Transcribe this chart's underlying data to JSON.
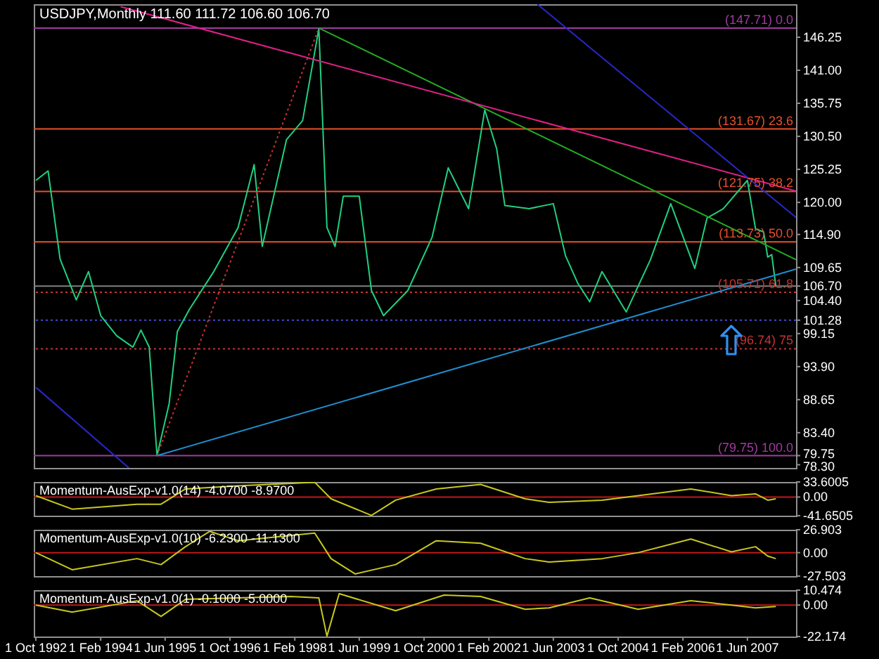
{
  "chart_data": [
    {
      "type": "line",
      "title": "USDJPY,Monthly 111.60 111.72 106.60 106.70",
      "xlim": [
        "1992-09-15",
        "2008-06-01"
      ],
      "ylim": [
        77.8,
        151.5
      ],
      "tick_labels": "y",
      "yticks": [
        {
          "value": 78.3,
          "label": "78.30"
        },
        {
          "value": 83.4,
          "label": "83.40"
        },
        88.65,
        {
          "value": 93.9,
          "label": "93.90"
        },
        99.15,
        {
          "value": 104.4,
          "label": "104.40"
        },
        109.65,
        {
          "value": 114.9,
          "label": "114.90"
        },
        {
          "value": 120,
          "label": "120.00"
        },
        125.25,
        {
          "value": 130.5,
          "label": "130.50"
        },
        135.75,
        {
          "value": 141,
          "label": "141.00"
        },
        146.25,
        {
          "value": 106.7,
          "label": "106.70"
        },
        {
          "value": 101.28,
          "label": "101.28"
        },
        {
          "value": 79.75,
          "label": "79.75"
        }
      ],
      "ref_lines": [
        {
          "axis": "y",
          "value": 147.71,
          "label": "(147.71) 0.0",
          "color": "#a03ca0"
        },
        {
          "axis": "y",
          "value": 131.67,
          "label": "(131.67) 23.6",
          "color": "#e8502a"
        },
        {
          "axis": "y",
          "value": 121.75,
          "label": "(121.75) 38.2",
          "color": "#e8502a"
        },
        {
          "axis": "y",
          "value": 113.73,
          "label": "(113.73) 50.0",
          "color": "#e8502a"
        },
        {
          "axis": "y",
          "value": 105.71,
          "label": "(105.71) 61.8",
          "color": "#c83232",
          "line_style": "dotted"
        },
        {
          "axis": "y",
          "value": 96.74,
          "label": "(96.74) 75",
          "color": "#c83232",
          "line_style": "dotted"
        },
        {
          "axis": "y",
          "value": 79.75,
          "label": "(79.75) 100.0",
          "color": "#a03ca0"
        },
        {
          "axis": "y",
          "value": 106.7,
          "color": "#808080"
        },
        {
          "axis": "y",
          "value": 101.28,
          "color": "#4848d0",
          "line_style": "dotted"
        }
      ],
      "series": [
        {
          "color": "#20d080",
          "x": [
            "1992-10",
            "1993-01",
            "1993-04",
            "1993-08",
            "1993-11",
            "1994-02",
            "1994-06",
            "1994-10",
            "1994-12",
            "1995-02",
            "1995-04",
            "1995-07",
            "1995-09",
            "1995-12",
            "1996-06",
            "1996-12",
            "1997-04",
            "1997-06",
            "1997-12",
            "1998-04",
            "1998-08",
            "1998-10",
            "1998-12",
            "1999-02",
            "1999-06",
            "1999-09",
            "1999-12",
            "2000-06",
            "2000-12",
            "2001-04",
            "2001-09",
            "2002-01",
            "2002-04",
            "2002-06",
            "2002-12",
            "2003-06",
            "2003-09",
            "2003-12",
            "2004-03",
            "2004-06",
            "2004-12",
            "2005-06",
            "2005-11",
            "2006-05",
            "2006-08",
            "2006-12",
            "2007-06",
            "2007-08",
            "2007-10",
            "2007-11",
            "2007-12",
            "2008-01"
          ],
          "values": [
            123.5,
            125,
            111,
            104.5,
            109,
            102,
            98.8,
            97,
            99.7,
            97,
            79.75,
            88,
            99.5,
            103,
            109,
            116,
            126,
            113,
            130,
            133,
            147.6,
            116,
            113,
            121,
            121,
            106,
            102,
            106,
            114.5,
            125.5,
            119,
            134.7,
            128.5,
            119.5,
            119,
            119.8,
            111.5,
            107.2,
            104.2,
            109,
            102.6,
            110.9,
            119.8,
            109.5,
            117.5,
            119,
            123.5,
            115.8,
            115.3,
            111.3,
            111.7,
            106.7
          ]
        },
        {
          "type": "line",
          "color": "#22aa22",
          "x": [
            "1998-08",
            "2008-06"
          ],
          "values": [
            147.71,
            110.9
          ]
        },
        {
          "type": "line",
          "color": "#e0208a",
          "x": [
            "1994-07",
            "2008-06"
          ],
          "values": [
            151.1,
            121.8
          ]
        },
        {
          "type": "line",
          "color": "#1e90d0",
          "x": [
            "1995-04",
            "2008-06"
          ],
          "values": [
            79.75,
            109.4
          ]
        },
        {
          "type": "line",
          "color": "#d03030",
          "line_style": "dotted",
          "x": [
            "1995-04",
            "1998-08"
          ],
          "values": [
            79.75,
            147.71
          ]
        },
        {
          "type": "line",
          "color": "#2828c8",
          "x": [
            "1992-10",
            "1994-09"
          ],
          "values": [
            90.6,
            77.8
          ]
        },
        {
          "type": "line",
          "color": "#2828c8",
          "x": [
            "2003-02",
            "2008-06"
          ],
          "values": [
            151.5,
            117.6
          ]
        }
      ]
    },
    {
      "type": "line",
      "title": "Momentum-AusExp-v1.0(14) -4.0700 -8.9700",
      "xlim": [
        "1992-09-15",
        "2008-06-01"
      ],
      "ylim": [
        -41.6505,
        33.6005
      ],
      "tick_labels": "y",
      "yticks": [
        33.6005,
        {
          "value": 0,
          "label": "0.00"
        },
        -41.6505
      ],
      "ref_lines": [
        {
          "axis": "y",
          "value": 0,
          "color": "#c01818"
        }
      ],
      "series": [
        {
          "color": "#c8c820",
          "x": [
            "1992-10",
            "1993-07",
            "1994-11",
            "1995-05",
            "1995-11",
            "1996-12",
            "1998-07",
            "1998-11",
            "1999-09",
            "2000-03",
            "2001-01",
            "2001-12",
            "2002-11",
            "2003-05",
            "2004-06",
            "2005-03",
            "2006-04",
            "2007-02",
            "2007-08",
            "2007-11",
            "2008-01"
          ],
          "values": [
            3,
            -27,
            -16,
            -16,
            18,
            25,
            33,
            -4,
            -41,
            -7,
            18,
            28,
            -4,
            -12,
            -7,
            3,
            18,
            3,
            7,
            -7,
            -4
          ]
        }
      ]
    },
    {
      "type": "line",
      "title": "Momentum-AusExp-v1.0(10) -6.2300 -11.1300",
      "xlim": [
        "1992-09-15",
        "2008-06-01"
      ],
      "ylim": [
        -27.503,
        26.903
      ],
      "tick_labels": "y",
      "yticks": [
        26.903,
        {
          "value": 0,
          "label": "0.00"
        },
        -27.503
      ],
      "ref_lines": [
        {
          "axis": "y",
          "value": 0,
          "color": "#c01818"
        }
      ],
      "series": [
        {
          "color": "#c8c820",
          "x": [
            "1992-10",
            "1993-07",
            "1994-11",
            "1995-05",
            "1995-11",
            "1996-05",
            "1996-12",
            "1998-07",
            "1998-11",
            "1999-05",
            "2000-03",
            "2001-01",
            "2001-12",
            "2002-11",
            "2003-05",
            "2004-06",
            "2005-03",
            "2006-04",
            "2007-02",
            "2007-08",
            "2007-11",
            "2008-01"
          ],
          "values": [
            0,
            -20,
            -7,
            -14,
            7,
            25,
            14,
            23,
            -7,
            -25,
            -14,
            14,
            11,
            -7,
            -11,
            -7,
            0,
            16,
            1,
            7,
            -4,
            -7
          ]
        }
      ]
    },
    {
      "type": "line",
      "title": "Momentum-AusExp-v1.0(1) -0.1000 -5.0000",
      "xlim": [
        "1992-09-15",
        "2008-06-01"
      ],
      "ylim": [
        -22.174,
        10.474
      ],
      "yticks": [
        10.474,
        {
          "value": 0,
          "label": "0.00"
        },
        -22.174
      ],
      "xticks": [
        {
          "value": "1992-10-01",
          "label": "1 Oct 1992"
        },
        {
          "value": "1994-02-01",
          "label": "1 Feb 1994"
        },
        {
          "value": "1995-06-01",
          "label": "1 Jun 1995"
        },
        {
          "value": "1996-10-01",
          "label": "1 Oct 1996"
        },
        {
          "value": "1998-02-01",
          "label": "1 Feb 1998"
        },
        {
          "value": "1999-06-01",
          "label": "1 Jun 1999"
        },
        {
          "value": "2000-10-01",
          "label": "1 Oct 2000"
        },
        {
          "value": "2002-02-01",
          "label": "1 Feb 2002"
        },
        {
          "value": "2003-06-01",
          "label": "1 Jun 2003"
        },
        {
          "value": "2004-10-01",
          "label": "1 Oct 2004"
        },
        {
          "value": "2006-02-01",
          "label": "1 Feb 2006"
        },
        {
          "value": "2007-06-01",
          "label": "1 Jun 2007"
        }
      ],
      "ref_lines": [
        {
          "axis": "y",
          "value": 0,
          "color": "#c01818"
        }
      ],
      "series": [
        {
          "color": "#c8c820",
          "x": [
            "1992-10",
            "1993-07",
            "1994-11",
            "1995-05",
            "1995-11",
            "1996-12",
            "1998-01",
            "1998-08",
            "1998-10",
            "1999-01",
            "2000-03",
            "2001-03",
            "2001-12",
            "2002-11",
            "2003-05",
            "2004-03",
            "2005-03",
            "2006-04",
            "2007-02",
            "2007-08",
            "2008-01"
          ],
          "values": [
            0,
            -5,
            3,
            -8,
            4,
            5,
            6,
            5,
            -22,
            8,
            -4,
            7,
            6,
            -3,
            -2,
            5,
            -3,
            3,
            0,
            -2,
            -1
          ]
        }
      ]
    }
  ]
}
